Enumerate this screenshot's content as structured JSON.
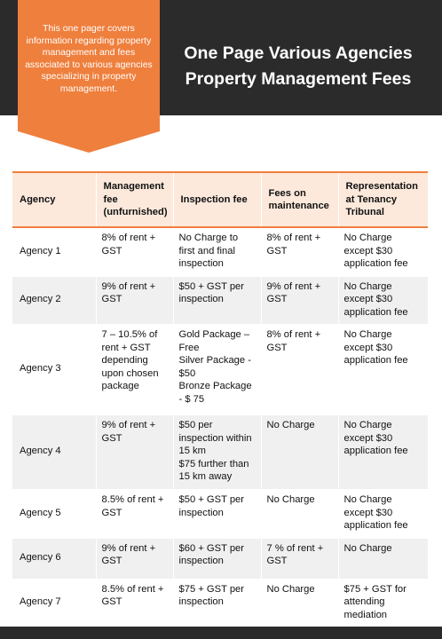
{
  "header": {
    "callout_text": "This one pager covers information regarding property management and fees associated to various agencies specializing in property management.",
    "title": "One Page Various Agencies Property Management Fees"
  },
  "table": {
    "columns": [
      "Agency",
      "Management fee (unfurnished)",
      "Inspection fee",
      "Fees on maintenance",
      "Representation at Tenancy Tribunal"
    ],
    "rows": [
      [
        "Agency 1",
        "8% of rent + GST",
        "No Charge to first and final inspection",
        "8% of rent + GST",
        "No Charge except $30 application fee"
      ],
      [
        "Agency 2",
        "9% of rent + GST",
        "$50 + GST per inspection",
        "9% of rent + GST",
        "No Charge except $30 application fee"
      ],
      [
        "Agency 3",
        "7 – 10.5% of rent + GST depending upon chosen package",
        "Gold Package – Free\nSilver Package - $50\nBronze Package - $ 75",
        "8% of rent + GST",
        "No Charge except $30 application fee"
      ],
      [
        "Agency 4",
        "9% of rent + GST",
        "$50 per inspection within 15 km\n$75 further than 15 km away",
        "No Charge",
        "No Charge except $30 application fee"
      ],
      [
        "Agency 5",
        "8.5% of rent + GST",
        "$50 + GST per inspection",
        "No Charge",
        "No Charge except $30 application fee"
      ],
      [
        "Agency 6",
        "9% of rent + GST",
        "$60 + GST per inspection",
        "7 % of rent + GST",
        "No Charge"
      ],
      [
        "Agency 7",
        "8.5% of rent + GST",
        "$75 + GST per inspection",
        "No Charge",
        "$75 + GST for attending mediation"
      ]
    ]
  },
  "colors": {
    "accent": "#ef7f3d",
    "dark": "#2b2b2b",
    "header_fill": "#fce9dc",
    "alt_row": "#f0f0f0"
  }
}
